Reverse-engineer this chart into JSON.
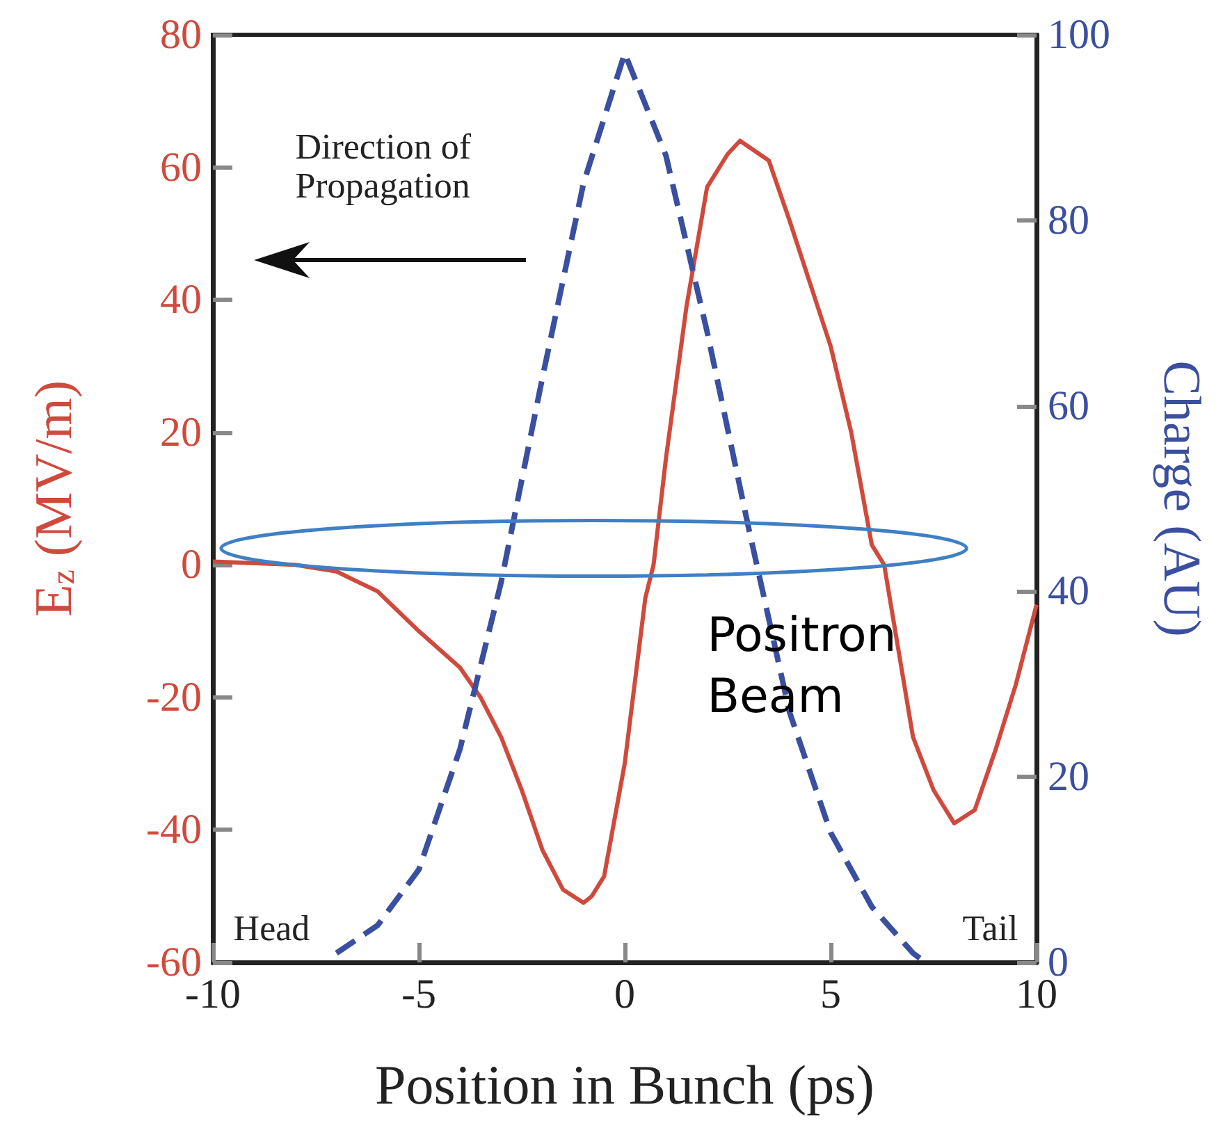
{
  "chart_data": {
    "type": "line",
    "xlabel": "Position in Bunch (ps)",
    "ylabel": "E$_{z}$ (MV/m)",
    "y2label": "Charge (AU)",
    "xlim": [
      -10,
      10
    ],
    "xticks": [
      -10,
      -5,
      0,
      5,
      10
    ],
    "ylim": [
      -60,
      80
    ],
    "yticks": [
      -60,
      -40,
      -20,
      0,
      20,
      40,
      60,
      80
    ],
    "y2lim": [
      0,
      100
    ],
    "y2ticks": [
      0,
      20,
      40,
      60,
      80,
      100
    ],
    "grid": false,
    "marker": "none",
    "series": [
      {
        "color": "#cf4a3c",
        "line_style": "solid",
        "x": [
          -10,
          -8,
          -7,
          -6,
          -5,
          -4,
          -3.5,
          -3,
          -2.5,
          -2,
          -1.5,
          -1,
          -0.8,
          -0.5,
          0,
          0.5,
          0.7,
          1,
          1.5,
          2,
          2.5,
          2.8,
          3.5,
          4,
          5,
          5.5,
          6,
          6.3,
          7,
          7.5,
          8,
          8.5,
          9,
          9.5,
          10
        ],
        "values": [
          0.5,
          0,
          -1,
          -4,
          -10,
          -15.5,
          -20,
          -26,
          -34,
          -43,
          -49,
          -51,
          -50,
          -47,
          -30,
          -5,
          0,
          16,
          39,
          57,
          62,
          64,
          61,
          52,
          33,
          20,
          3,
          0,
          -26,
          -34,
          -39,
          -37,
          -28,
          -18,
          -6
        ]
      },
      {
        "color": "#3a4fa0",
        "line_style": "dashed",
        "axis": "y2",
        "x": [
          -7,
          -6,
          -5,
          -4,
          -3,
          -2,
          -1,
          0,
          1,
          2,
          3,
          4,
          5,
          6,
          7,
          7.3
        ],
        "values": [
          1,
          4,
          10,
          23,
          41,
          63,
          84,
          98,
          87,
          68,
          47,
          27,
          14,
          6,
          1,
          0
        ]
      }
    ],
    "annotations": [
      "Direction of Propagation",
      "Head",
      "Tail",
      "Positron Beam"
    ]
  }
}
